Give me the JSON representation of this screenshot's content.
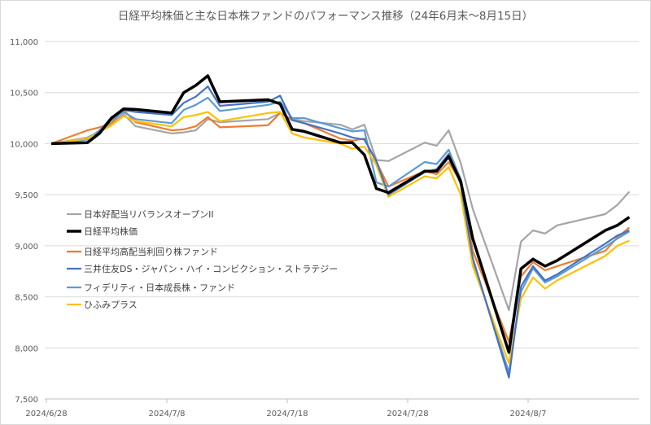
{
  "chart_data": {
    "type": "line",
    "title": "日経平均株価と主な日本株ファンドのパフォーマンス推移（24年6月末～8月15日）",
    "xlabel": "",
    "ylabel": "",
    "ylim": [
      7500,
      11000
    ],
    "yticks": [
      7500,
      8000,
      8500,
      9000,
      9500,
      10000,
      10500,
      11000
    ],
    "ytick_labels": [
      "7,500",
      "8,000",
      "8,500",
      "9,000",
      "9,500",
      "10,000",
      "10,500",
      "11,000"
    ],
    "xticks": [
      "2024/6/28",
      "2024/7/8",
      "2024/7/18",
      "2024/7/28",
      "2024/8/7"
    ],
    "grid": true,
    "legend_position": "left-middle",
    "x": [
      "2024/6/28",
      "2024/7/1",
      "2024/7/2",
      "2024/7/3",
      "2024/7/4",
      "2024/7/5",
      "2024/7/8",
      "2024/7/9",
      "2024/7/10",
      "2024/7/11",
      "2024/7/12",
      "2024/7/16",
      "2024/7/17",
      "2024/7/18",
      "2024/7/19",
      "2024/7/22",
      "2024/7/23",
      "2024/7/24",
      "2024/7/25",
      "2024/7/26",
      "2024/7/29",
      "2024/7/30",
      "2024/7/31",
      "2024/8/1",
      "2024/8/2",
      "2024/8/5",
      "2024/8/6",
      "2024/8/7",
      "2024/8/8",
      "2024/8/9",
      "2024/8/13",
      "2024/8/14",
      "2024/8/15"
    ],
    "series": [
      {
        "name": "日本好配当リバランスオープンII",
        "color": "#a5a5a5",
        "width": 2.2,
        "values": [
          10000,
          10060,
          10120,
          10200,
          10290,
          10170,
          10100,
          10110,
          10130,
          10240,
          10210,
          10240,
          10300,
          10240,
          10220,
          10185,
          10140,
          10185,
          9840,
          9830,
          10010,
          9980,
          10130,
          9810,
          9360,
          8370,
          9040,
          9150,
          9120,
          9200,
          9310,
          9400,
          9530
        ]
      },
      {
        "name": "日経平均株価",
        "color": "#000000",
        "width": 3.5,
        "values": [
          10000,
          10010,
          10100,
          10250,
          10340,
          10335,
          10300,
          10500,
          10570,
          10665,
          10410,
          10430,
          10390,
          10140,
          10120,
          10010,
          10010,
          9890,
          9560,
          9520,
          9730,
          9730,
          9875,
          9630,
          9070,
          7955,
          8775,
          8870,
          8800,
          8855,
          9150,
          9200,
          9280
        ]
      },
      {
        "name": "日経平均高配当利回り株ファンド",
        "color": "#ed7d31",
        "width": 2.2,
        "values": [
          10000,
          10130,
          10160,
          10200,
          10330,
          10210,
          10130,
          10140,
          10170,
          10260,
          10160,
          10180,
          10300,
          10230,
          10200,
          10050,
          10030,
          10050,
          9820,
          9580,
          9730,
          9700,
          9820,
          9620,
          8950,
          8060,
          8700,
          8840,
          8760,
          8800,
          8950,
          9080,
          9180
        ]
      },
      {
        "name": "三井住友DS・ジャパン・ハイ・コンビクション・ストラテジー",
        "color": "#4472c4",
        "width": 2.2,
        "values": [
          10000,
          10010,
          10120,
          10260,
          10330,
          10310,
          10280,
          10400,
          10460,
          10560,
          10370,
          10410,
          10470,
          10230,
          10200,
          10100,
          10060,
          10040,
          9830,
          9500,
          9720,
          9750,
          9900,
          9600,
          8880,
          7710,
          8600,
          8800,
          8660,
          8720,
          9020,
          9100,
          9150
        ]
      },
      {
        "name": "フィデリティ・日本成長株・ファンド",
        "color": "#5b9bd5",
        "width": 2.2,
        "values": [
          10000,
          10040,
          10130,
          10230,
          10310,
          10240,
          10200,
          10330,
          10380,
          10450,
          10320,
          10380,
          10410,
          10250,
          10250,
          10150,
          10120,
          10130,
          9620,
          9580,
          9820,
          9800,
          9940,
          9650,
          8850,
          7760,
          8550,
          8780,
          8640,
          8700,
          8990,
          9070,
          9140
        ]
      },
      {
        "name": "ひふみプラス",
        "color": "#ffc000",
        "width": 2.2,
        "values": [
          10000,
          10050,
          10110,
          10180,
          10270,
          10220,
          10170,
          10260,
          10280,
          10310,
          10220,
          10300,
          10310,
          10100,
          10060,
          10000,
          9950,
          9970,
          9790,
          9480,
          9680,
          9660,
          9770,
          9500,
          8800,
          7850,
          8480,
          8690,
          8580,
          8660,
          8900,
          9000,
          9050
        ]
      }
    ]
  }
}
